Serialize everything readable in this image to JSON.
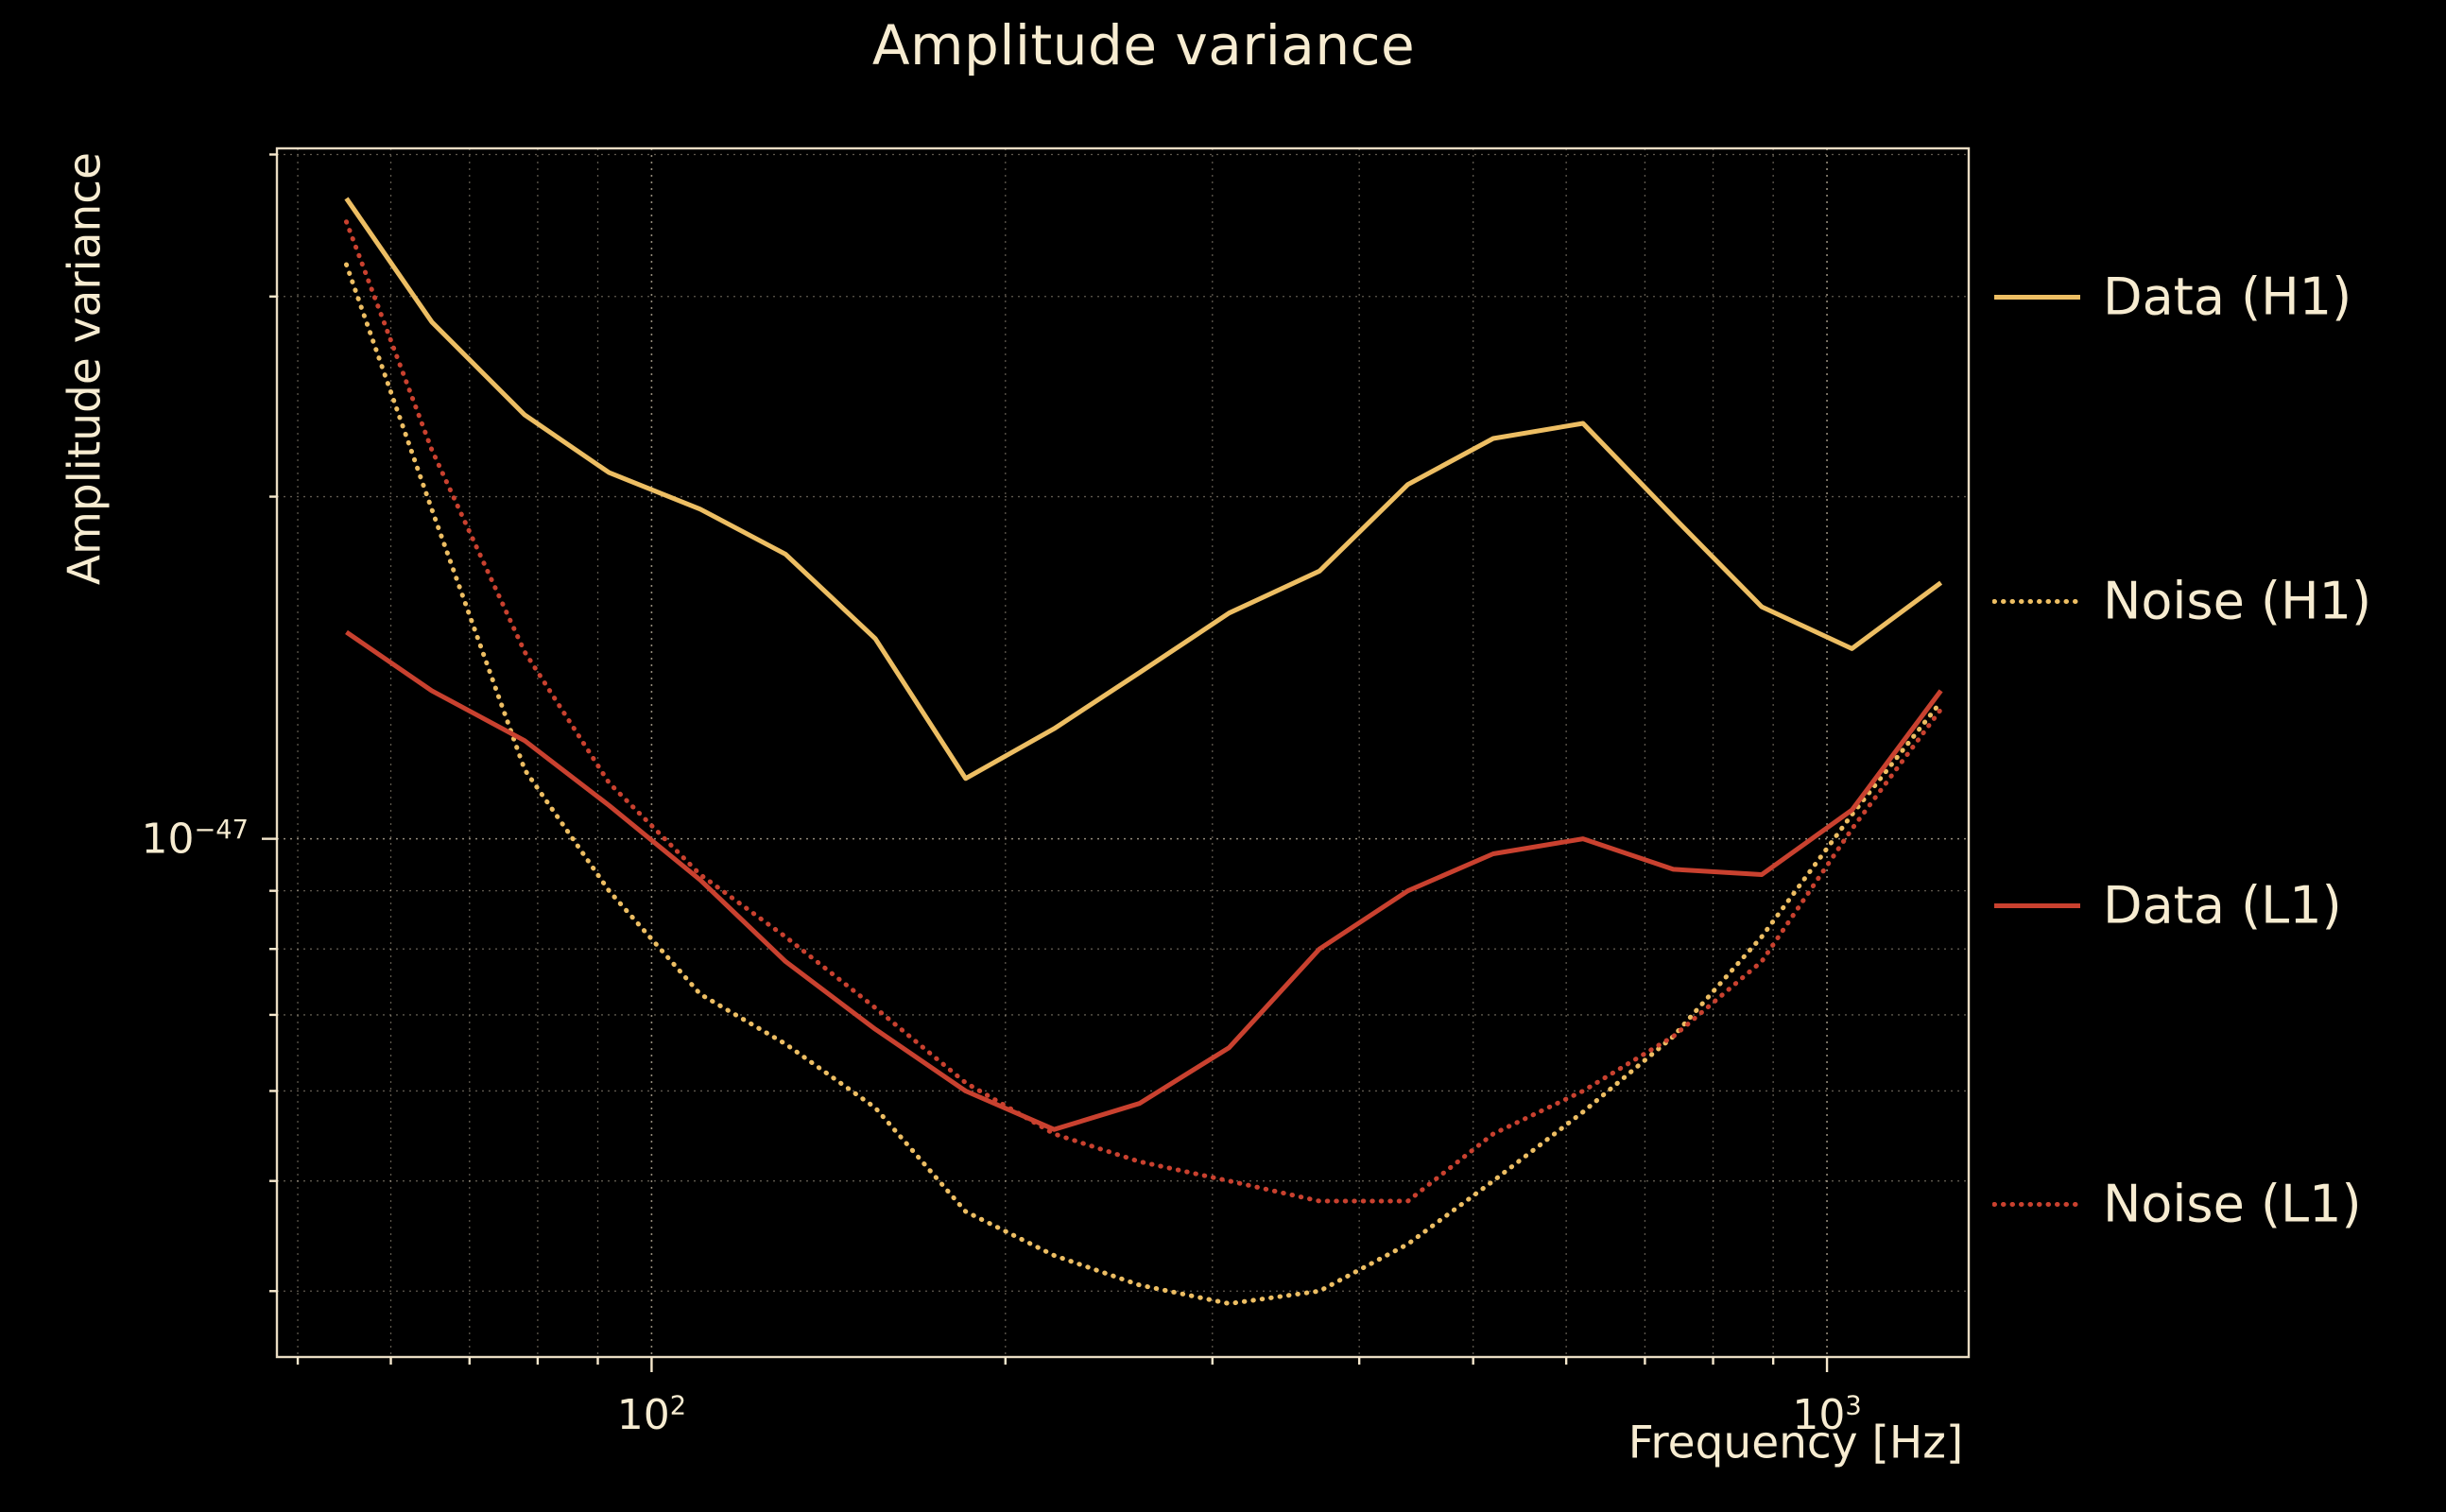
{
  "colors": {
    "background": "#000000",
    "text": "#f7ecd1",
    "grid": "#f6e8cd",
    "h1_series": "#edbe63",
    "l1_series": "#c9412f"
  },
  "chart_data": {
    "type": "line",
    "title": "Amplitude variance",
    "xlabel": "Frequency [Hz]",
    "ylabel": "Amplitude variance",
    "xscale": "log",
    "yscale": "log",
    "xlim": [
      48,
      1320
    ],
    "ylim": [
      3.5e-48,
      4.05e-47
    ],
    "grid": "major and minor, dotted",
    "legend_position": "right outside",
    "x_ticks": [
      {
        "value": 100,
        "label": "10^2"
      },
      {
        "value": 1000,
        "label": "10^3"
      }
    ],
    "y_ticks": [
      {
        "value": 1e-47,
        "label": "10^−47"
      }
    ],
    "x": [
      55,
      65,
      78,
      92,
      110,
      130,
      155,
      185,
      220,
      260,
      310,
      370,
      440,
      520,
      620,
      740,
      880,
      1050,
      1250
    ],
    "series": [
      {
        "name": "Data (H1)",
        "color": "#edbe63",
        "line": "solid",
        "values": [
          3.66e-47,
          2.85e-47,
          2.36e-47,
          2.1e-47,
          1.95e-47,
          1.78e-47,
          1.5e-47,
          1.13e-47,
          1.25e-47,
          1.4e-47,
          1.58e-47,
          1.72e-47,
          2.05e-47,
          2.25e-47,
          2.32e-47,
          1.92e-47,
          1.6e-47,
          1.47e-47,
          1.68e-47
        ]
      },
      {
        "name": "Noise (H1)",
        "color": "#edbe63",
        "line": "dotted",
        "values": [
          3.2e-47,
          1.95e-47,
          1.15e-47,
          9e-48,
          7.3e-48,
          6.6e-48,
          5.8e-48,
          4.7e-48,
          4.3e-48,
          4.05e-48,
          3.9e-48,
          4e-48,
          4.4e-48,
          5e-48,
          5.75e-48,
          6.7e-48,
          8.2e-48,
          1.05e-47,
          1.32e-47
        ]
      },
      {
        "name": "Data (L1)",
        "color": "#c9412f",
        "line": "solid",
        "values": [
          1.52e-47,
          1.35e-47,
          1.22e-47,
          1.07e-47,
          9.2e-48,
          7.8e-48,
          6.8e-48,
          6e-48,
          5.55e-48,
          5.85e-48,
          6.55e-48,
          8e-48,
          9e-48,
          9.7e-48,
          1e-47,
          9.4e-48,
          9.3e-48,
          1.06e-47,
          1.35e-47
        ]
      },
      {
        "name": "Noise (L1)",
        "color": "#c9412f",
        "line": "dotted",
        "values": [
          3.49e-47,
          2.2e-47,
          1.46e-47,
          1.12e-47,
          9.3e-48,
          8.2e-48,
          7.1e-48,
          6.1e-48,
          5.5e-48,
          5.2e-48,
          5e-48,
          4.8e-48,
          4.8e-48,
          5.5e-48,
          6e-48,
          6.7e-48,
          7.8e-48,
          1.02e-47,
          1.3e-47
        ]
      }
    ]
  }
}
